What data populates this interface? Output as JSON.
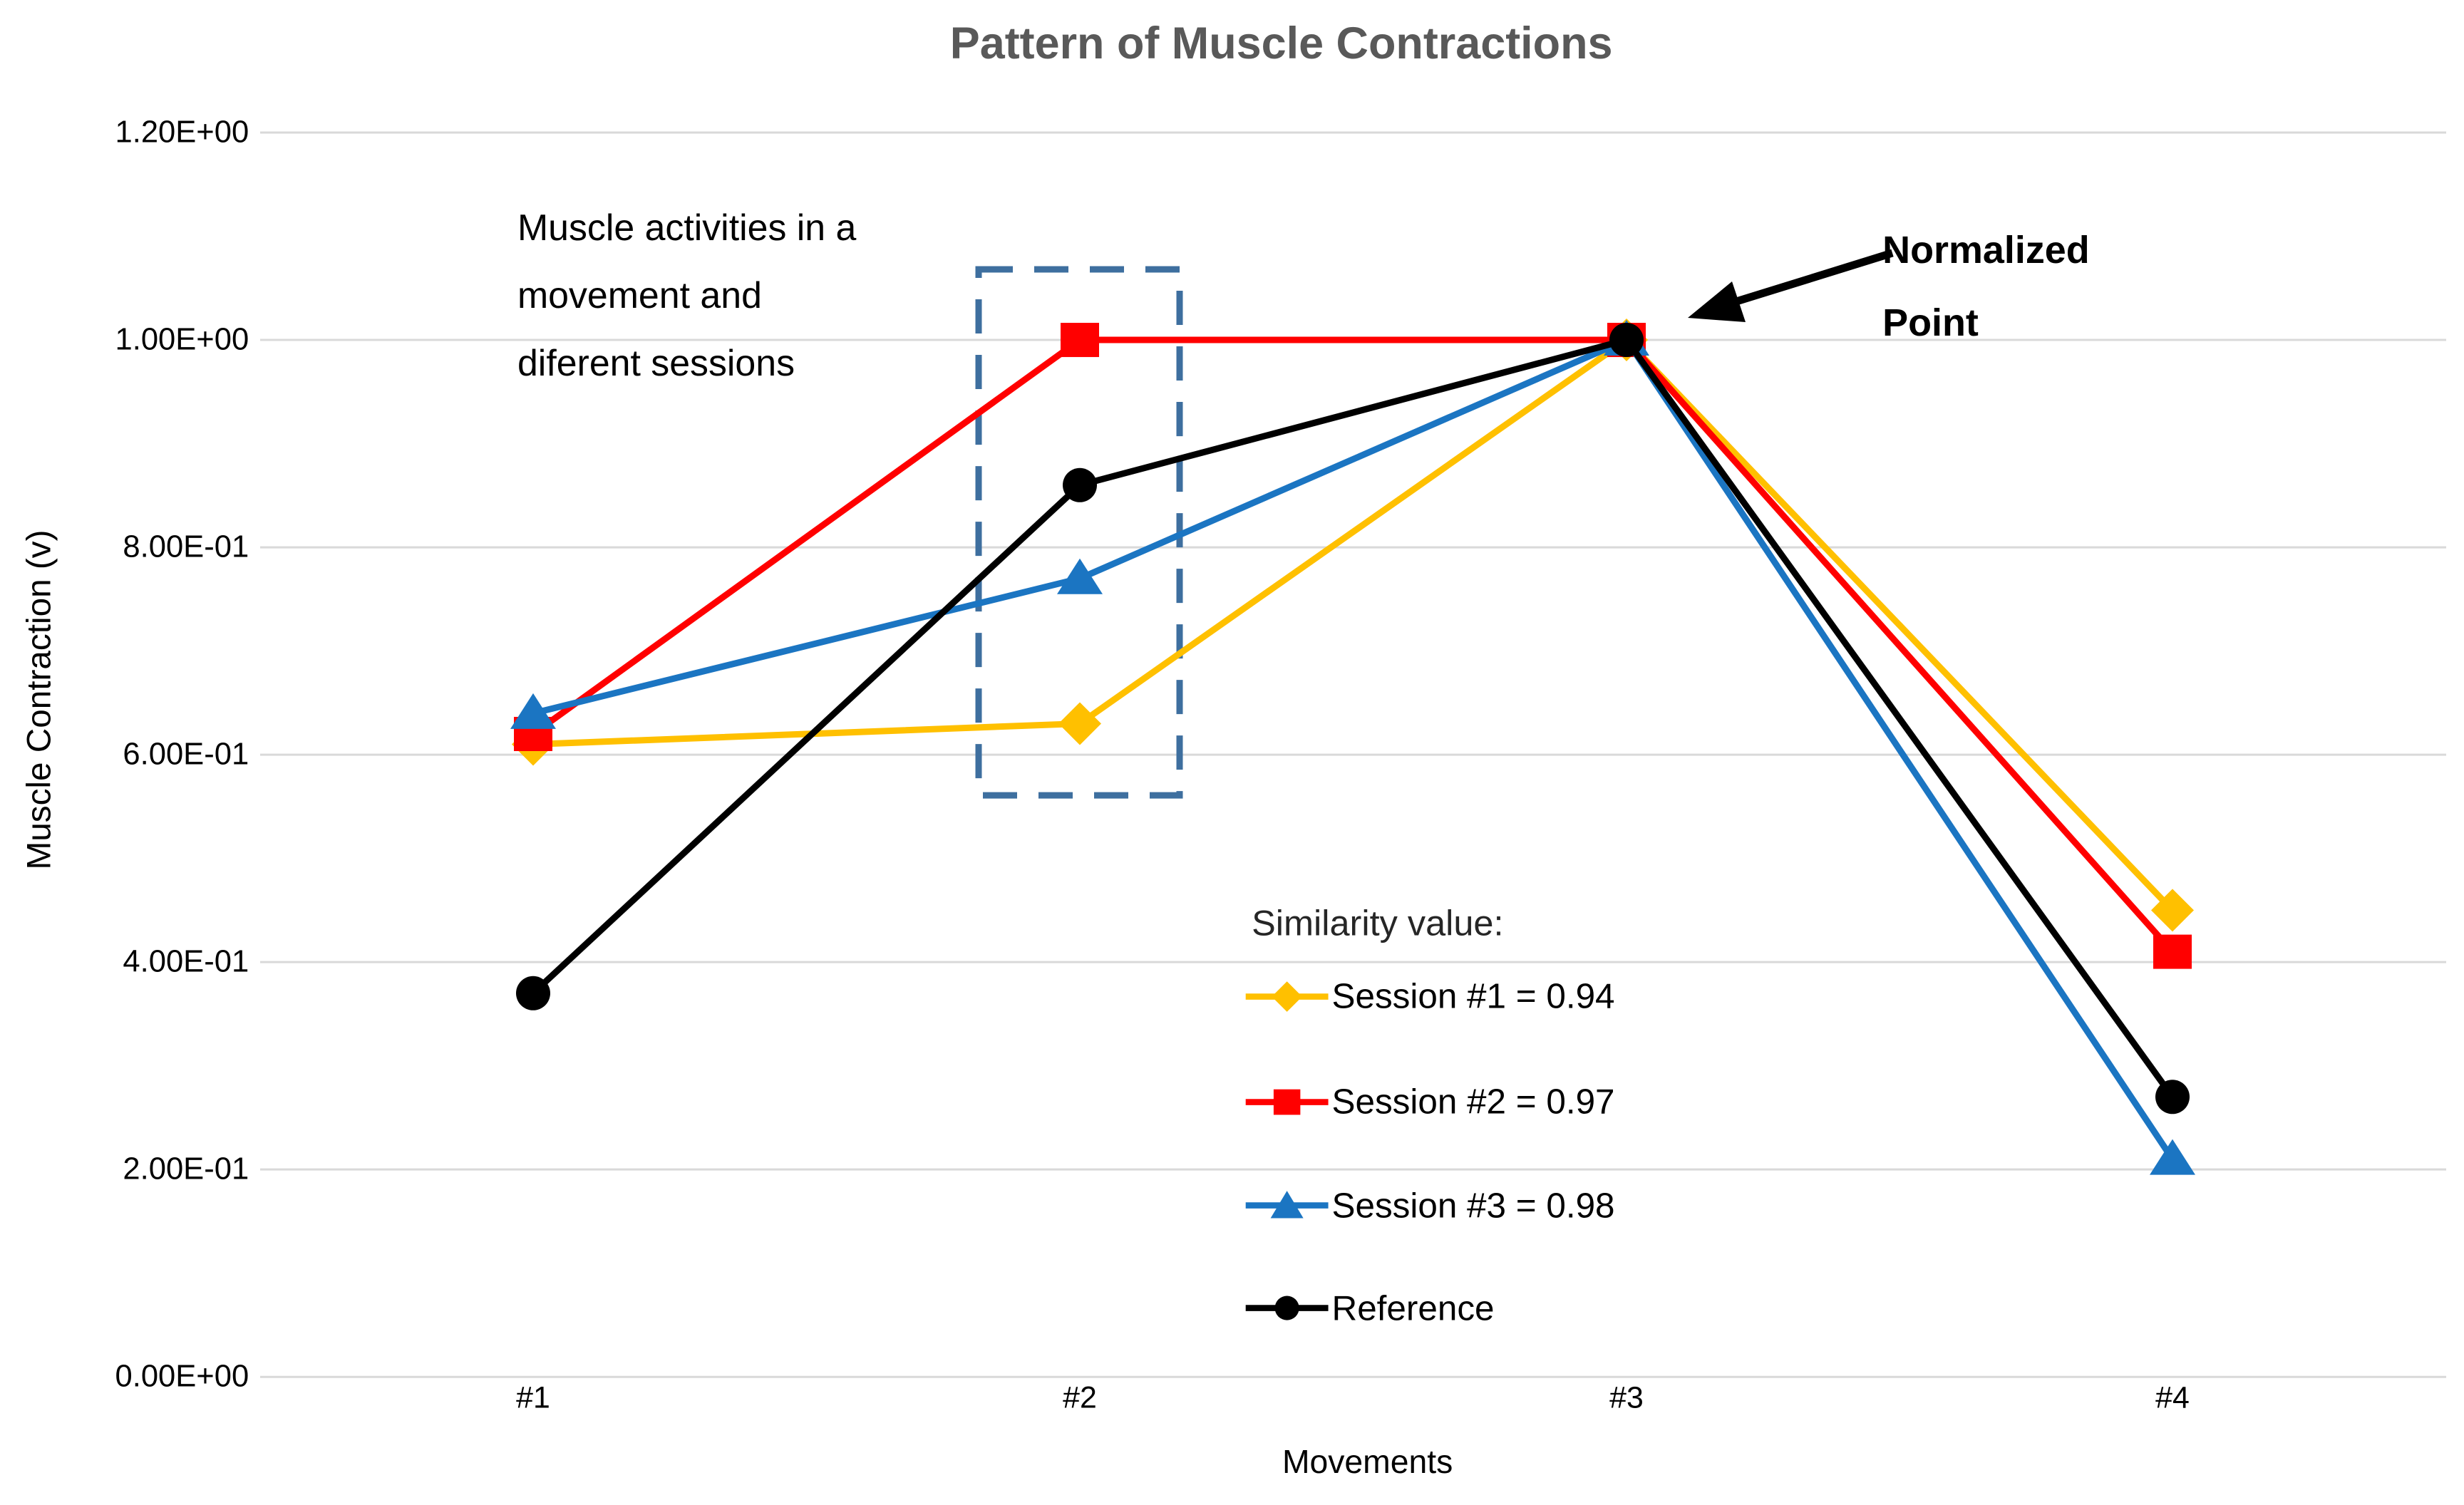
{
  "title": "Pattern of Muscle Contractions",
  "y_axis": {
    "title": "Muscle Contraction (v)",
    "ticks": [
      {
        "label": "1.20E+00",
        "value": 1.2
      },
      {
        "label": "1.00E+00",
        "value": 1.0
      },
      {
        "label": "8.00E-01",
        "value": 0.8
      },
      {
        "label": "6.00E-01",
        "value": 0.6
      },
      {
        "label": "4.00E-01",
        "value": 0.4
      },
      {
        "label": "2.00E-01",
        "value": 0.2
      },
      {
        "label": "0.00E+00",
        "value": 0.0
      }
    ]
  },
  "x_axis": {
    "title": "Movements",
    "tick_labels": [
      "#1",
      "#2",
      "#3",
      "#4"
    ]
  },
  "annotations": {
    "box_note": {
      "lines": [
        "Muscle activities in a",
        "movement and",
        "diferent sessions"
      ]
    },
    "normalized_point": {
      "lines": [
        "Normalized",
        "Point"
      ]
    }
  },
  "legend": {
    "heading": "Similarity value:",
    "items": [
      {
        "label": "Session #1 = 0.94",
        "marker": "diamond",
        "color": "#FFC000"
      },
      {
        "label": "Session #2 = 0.97",
        "marker": "square",
        "color": "#FF0000"
      },
      {
        "label": "Session #3 = 0.98",
        "marker": "triangle",
        "color": "#1B75C2"
      },
      {
        "label": "Reference",
        "marker": "circle",
        "color": "#000000"
      }
    ]
  },
  "chart_data": {
    "type": "line",
    "title": "Pattern of Muscle Contractions",
    "xlabel": "Movements",
    "ylabel": "Muscle Contraction (v)",
    "categories": [
      "#1",
      "#2",
      "#3",
      "#4"
    ],
    "series": [
      {
        "name": "Session #1 = 0.94",
        "marker": "diamond",
        "color": "#FFC000",
        "values": [
          0.61,
          0.63,
          1.0,
          0.45
        ]
      },
      {
        "name": "Session #2 = 0.97",
        "marker": "square",
        "color": "#FF0000",
        "values": [
          0.62,
          1.0,
          1.0,
          0.41
        ]
      },
      {
        "name": "Session #3 = 0.98",
        "marker": "triangle",
        "color": "#1B75C2",
        "values": [
          0.64,
          0.77,
          1.0,
          0.21
        ]
      },
      {
        "name": "Reference",
        "marker": "circle",
        "color": "#000000",
        "values": [
          0.37,
          0.86,
          1.0,
          0.27
        ]
      }
    ],
    "ylim": [
      0,
      1.2
    ],
    "y_tick_format": "scientific",
    "grid": "horizontal-only",
    "legend_position": "inside-lower-right",
    "highlighted_category": "#2",
    "annotated_point": {
      "category": "#3",
      "value": 1.0,
      "note": "Normalized Point"
    }
  },
  "colors": {
    "grid": "#D9D9D9",
    "title_text": "#595959",
    "highlight_box": "#3E6F9F",
    "arrow": "#000000",
    "background": "#FFFFFF"
  }
}
